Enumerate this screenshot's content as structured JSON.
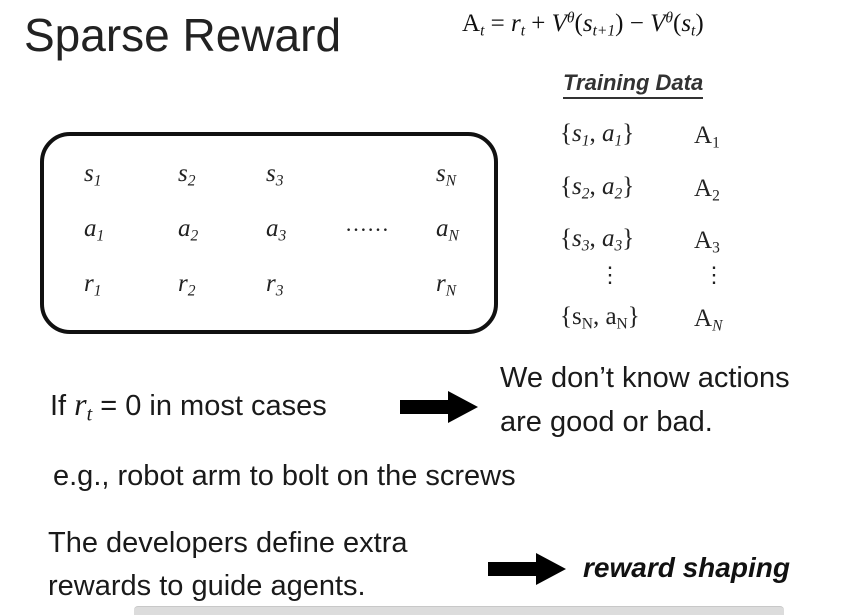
{
  "title": "Sparse Reward",
  "formula": {
    "lhs": "A",
    "lhs_sub": "t",
    "eq": " = ",
    "r": "r",
    "r_sub": "t",
    "plus": " + ",
    "V": "V",
    "theta": "θ",
    "s": "s",
    "next_sub": "t+1",
    "minus": " − ",
    "cur_sub": "t",
    "lparen": "(",
    "rparen": ")"
  },
  "trajectory": {
    "rows": [
      {
        "sym": "s",
        "cells": [
          "1",
          "2",
          "3",
          "N"
        ]
      },
      {
        "sym": "a",
        "cells": [
          "1",
          "2",
          "3",
          "N"
        ]
      },
      {
        "sym": "r",
        "cells": [
          "1",
          "2",
          "3",
          "N"
        ]
      }
    ],
    "ellipsis": "……"
  },
  "training_data": {
    "heading": "Training Data",
    "rows": [
      {
        "s": "s",
        "s_sub": "1",
        "a": "a",
        "a_sub": "1",
        "adv": "A",
        "adv_sub": "1"
      },
      {
        "s": "s",
        "s_sub": "2",
        "a": "a",
        "a_sub": "2",
        "adv": "A",
        "adv_sub": "2"
      },
      {
        "s": "s",
        "s_sub": "3",
        "a": "a",
        "a_sub": "3",
        "adv": "A",
        "adv_sub": "3"
      },
      {
        "s": "s",
        "s_sub": "N",
        "a": "a",
        "a_sub": "N",
        "adv": "A",
        "adv_sub": "N"
      }
    ],
    "vdots": "⋮",
    "lbrace": "{",
    "rbrace": "}",
    "comma": ", "
  },
  "condition": {
    "prefix": "If ",
    "var": "r",
    "var_sub": "t",
    "rest": " = 0 in most cases"
  },
  "consequence": {
    "line1": "We don’t know actions",
    "line2": "are good or bad."
  },
  "example": "e.g., robot arm to bolt on the screws",
  "developers": {
    "line1": "The developers define extra",
    "line2": "rewards to guide agents."
  },
  "result": "reward shaping",
  "colors": {
    "text": "#1a1a1a",
    "arrow": "#000000",
    "box_border": "#111111"
  }
}
